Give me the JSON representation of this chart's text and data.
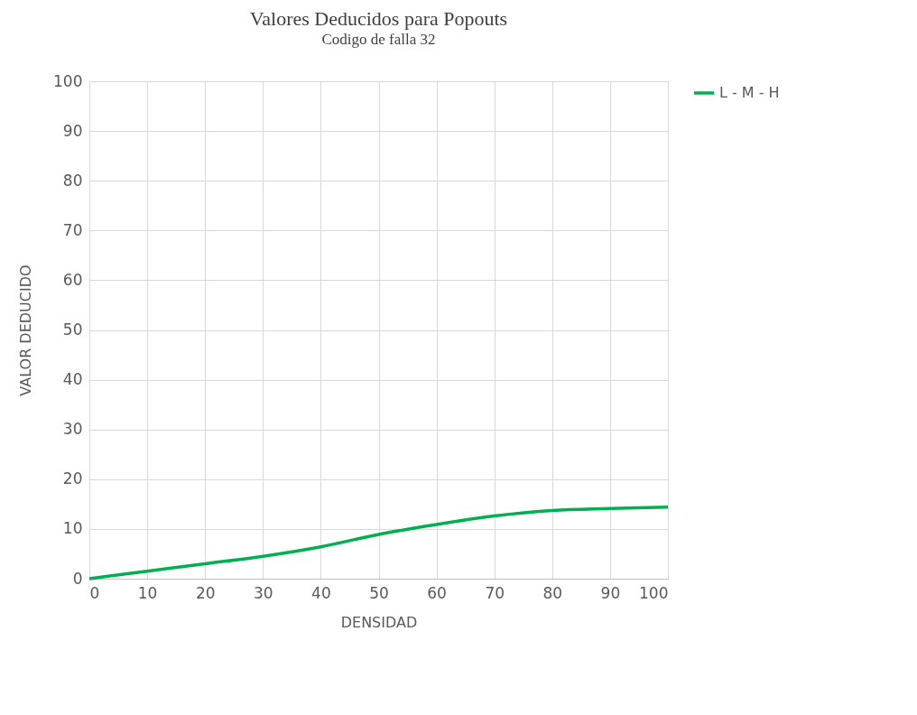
{
  "chart_data": {
    "type": "line",
    "title": "Valores Deducidos para Popouts",
    "subtitle": "Codigo de falla  32",
    "xlabel": "DENSIDAD",
    "ylabel": "VALOR DEDUCIDO",
    "x": [
      0,
      10,
      20,
      30,
      40,
      50,
      60,
      70,
      80,
      90,
      100
    ],
    "series": [
      {
        "name": "L - M - H",
        "color": "#00b050",
        "values": [
          0,
          1.5,
          3.0,
          4.5,
          6.4,
          8.9,
          10.9,
          12.6,
          13.7,
          14.1,
          14.4
        ]
      }
    ],
    "xlim": [
      0,
      100
    ],
    "xticks": [
      0,
      10,
      20,
      30,
      40,
      50,
      60,
      70,
      80,
      90,
      100
    ],
    "ylim": [
      0,
      100
    ],
    "yticks": [
      0,
      10,
      20,
      30,
      40,
      50,
      60,
      70,
      80,
      90,
      100
    ],
    "grid": true,
    "legend": "right",
    "marker": "none",
    "line_style": "solid"
  }
}
